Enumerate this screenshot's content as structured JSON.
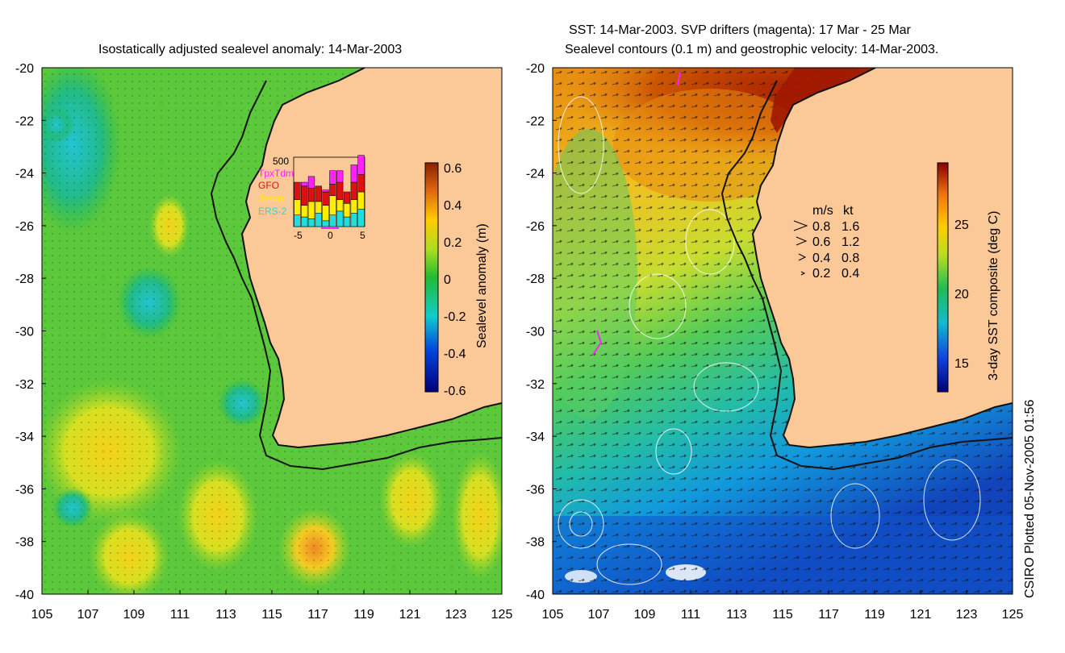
{
  "left_panel": {
    "title": "Isostatically adjusted sealevel anomaly: 14-Mar-2003",
    "y_ticks": [
      "-20",
      "-22",
      "-24",
      "-26",
      "-28",
      "-30",
      "-32",
      "-34",
      "-36",
      "-38",
      "-40"
    ],
    "x_ticks": [
      "105",
      "107",
      "109",
      "111",
      "113",
      "115",
      "117",
      "119",
      "121",
      "123",
      "125"
    ],
    "colorbar": {
      "label": "Sealevel anomaly (m)",
      "ticks": [
        "0.6",
        "0.4",
        "0.2",
        "0",
        "-0.2",
        "-0.4",
        "-0.6"
      ]
    },
    "inset": {
      "ymax_label": "500",
      "legend": [
        {
          "name": "TpxTdm",
          "color": "#ff22ff"
        },
        {
          "name": "GFO",
          "color": "#dd1111"
        },
        {
          "name": "Jason",
          "color": "#ffee00"
        },
        {
          "name": "ERS-2",
          "color": "#22dddd"
        }
      ],
      "x_ticks": [
        "-5",
        "0",
        "5"
      ],
      "bars": [
        {
          "ers2": 60,
          "jason": 80,
          "gfo": 90,
          "tpx": 0
        },
        {
          "ers2": 50,
          "jason": 60,
          "gfo": 100,
          "tpx": 20
        },
        {
          "ers2": 40,
          "jason": 90,
          "gfo": 70,
          "tpx": 60
        },
        {
          "ers2": 70,
          "jason": 60,
          "gfo": 80,
          "tpx": 0
        },
        {
          "ers2": 30,
          "jason": 80,
          "gfo": 70,
          "tpx": 10
        },
        {
          "ers2": 60,
          "jason": 100,
          "gfo": 60,
          "tpx": 70
        },
        {
          "ers2": 80,
          "jason": 60,
          "gfo": 90,
          "tpx": 60
        },
        {
          "ers2": 50,
          "jason": 70,
          "gfo": 60,
          "tpx": 0
        },
        {
          "ers2": 70,
          "jason": 70,
          "gfo": 90,
          "tpx": 90
        },
        {
          "ers2": 90,
          "jason": 90,
          "gfo": 90,
          "tpx": 100
        }
      ]
    }
  },
  "right_panel": {
    "title_line1": "SST: 14-Mar-2003. SVP drifters (magenta): 17 Mar - 25 Mar",
    "title_line2": "Sealevel contours (0.1 m) and geostrophic velocity: 14-Mar-2003.",
    "y_ticks": [
      "-20",
      "-22",
      "-24",
      "-26",
      "-28",
      "-30",
      "-32",
      "-34",
      "-36",
      "-38",
      "-40"
    ],
    "x_ticks": [
      "105",
      "107",
      "109",
      "111",
      "113",
      "115",
      "117",
      "119",
      "121",
      "123",
      "125"
    ],
    "colorbar": {
      "label": "3-day SST composite (deg C)",
      "ticks": [
        "25",
        "20",
        "15"
      ]
    },
    "velocity_legend": {
      "header_ms": "m/s",
      "header_kt": "kt",
      "rows": [
        {
          "ms": "0.8",
          "kt": "1.6"
        },
        {
          "ms": "0.6",
          "kt": "1.2"
        },
        {
          "ms": "0.4",
          "kt": "0.8"
        },
        {
          "ms": "0.2",
          "kt": "0.4"
        }
      ]
    }
  },
  "credit": "CSIRO Plotted 05-Nov-2005 01:56",
  "colors": {
    "land": "#fbc898",
    "ssl_mid": "#33bb33",
    "sst_warm": "#cc4400",
    "sst_cool": "#1166cc"
  }
}
